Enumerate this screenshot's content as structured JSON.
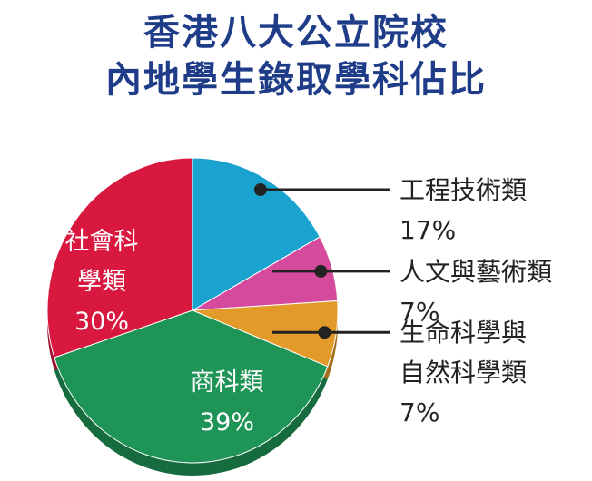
{
  "title_lines": [
    "香港八大公立院校",
    "內地學生錄取學科佔比"
  ],
  "chart_data": {
    "type": "pie",
    "title": "香港八大公立院校內地學生錄取學科佔比",
    "slices": [
      {
        "label_lines": [
          "工程技術類"
        ],
        "value": 17,
        "value_text": "17%",
        "color": "#1ba3cf"
      },
      {
        "label_lines": [
          "人文與藝術類"
        ],
        "value": 7,
        "value_text": "7%",
        "color": "#d54a9c"
      },
      {
        "label_lines": [
          "生命科學與",
          "自然科學類"
        ],
        "value": 7,
        "value_text": "7%",
        "color": "#e29a28"
      },
      {
        "label_lines": [
          "商科類"
        ],
        "value": 39,
        "value_text": "39%",
        "color": "#1f9457"
      },
      {
        "label_lines": [
          "社會科",
          "學類"
        ],
        "value": 30,
        "value_text": "30%",
        "color": "#d8183e"
      }
    ],
    "legend": "callouts"
  }
}
